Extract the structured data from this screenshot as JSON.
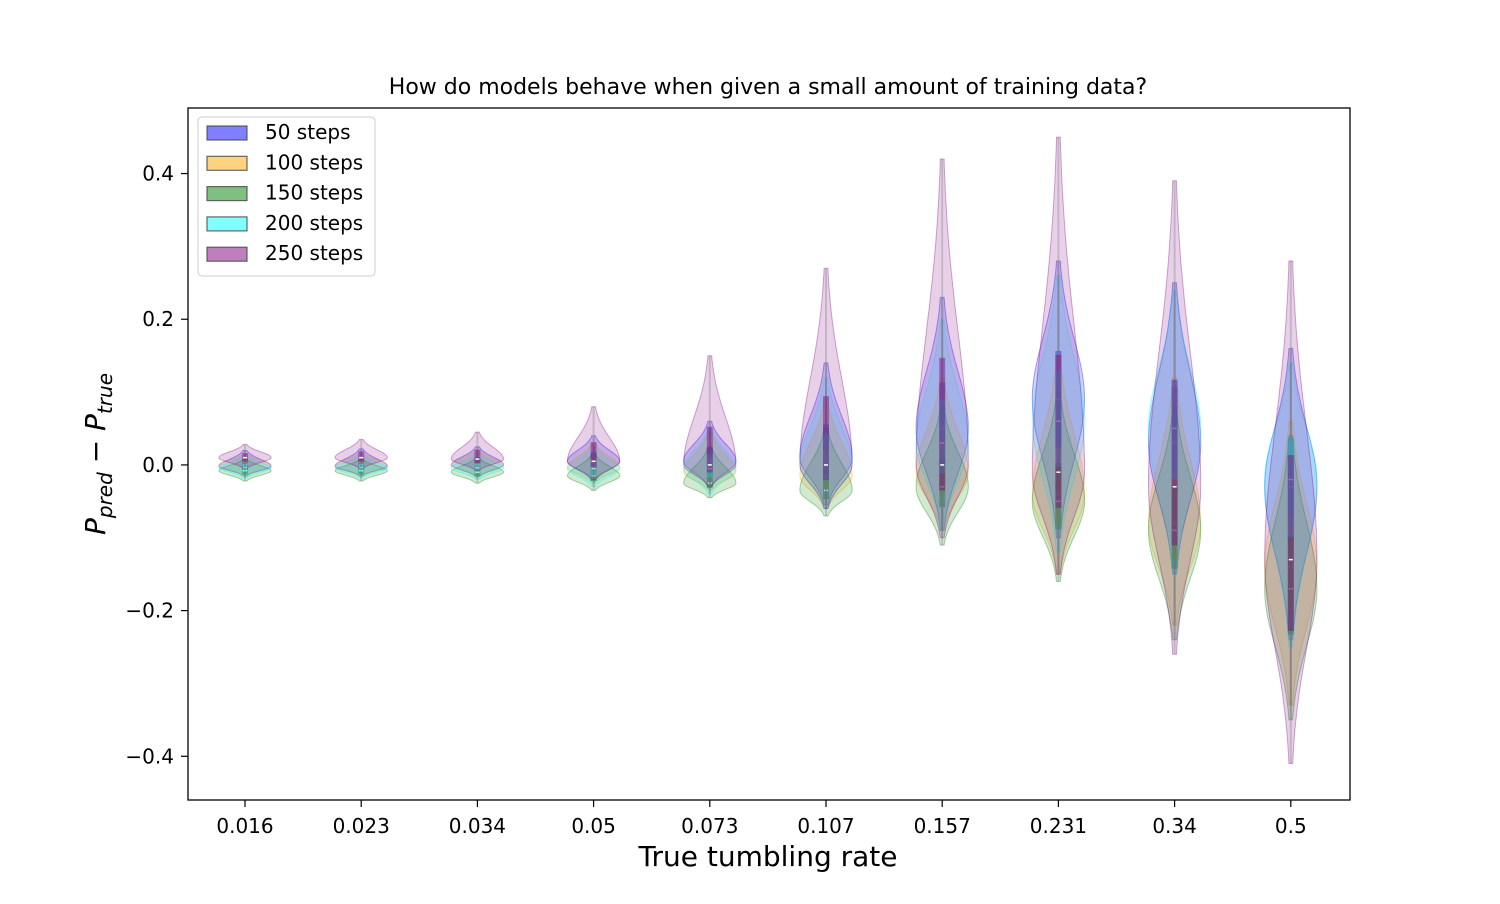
{
  "chart_data": {
    "type": "violin",
    "title": "How do models behave when given a small amount of training data?",
    "xlabel": "True tumbling rate",
    "ylabel_main": "P",
    "ylabel_sub1": "pred",
    "ylabel_minus": " − ",
    "ylabel_sub2": "true",
    "categories": [
      "0.016",
      "0.023",
      "0.034",
      "0.05",
      "0.073",
      "0.107",
      "0.157",
      "0.231",
      "0.34",
      "0.5"
    ],
    "ylim": [
      -0.46,
      0.49
    ],
    "yticks": [
      -0.4,
      -0.2,
      0.0,
      0.2,
      0.4
    ],
    "ytick_labels": [
      "−0.4",
      "−0.2",
      "0.0",
      "0.2",
      "0.4"
    ],
    "grid": false,
    "legend_position": "upper-left",
    "series": [
      {
        "name": "50 steps",
        "color": "#0000ff",
        "medians": [
          -0.002,
          -0.002,
          0.0,
          0.005,
          0.005,
          0.01,
          0.05,
          0.09,
          0.03,
          -0.03
        ],
        "mins": [
          -0.015,
          -0.015,
          -0.016,
          -0.022,
          -0.03,
          -0.055,
          -0.09,
          -0.1,
          -0.15,
          -0.24
        ],
        "maxs": [
          0.02,
          0.022,
          0.025,
          0.04,
          0.06,
          0.14,
          0.23,
          0.28,
          0.25,
          0.16
        ],
        "widths": [
          0.45,
          0.45,
          0.45,
          0.45,
          0.45,
          0.45,
          0.45,
          0.45,
          0.45,
          0.45
        ]
      },
      {
        "name": "100 steps",
        "color": "#ffa500",
        "medians": [
          0.0,
          0.0,
          0.0,
          -0.003,
          -0.01,
          -0.015,
          -0.01,
          -0.04,
          -0.08,
          -0.14
        ],
        "mins": [
          -0.015,
          -0.015,
          -0.017,
          -0.025,
          -0.035,
          -0.06,
          -0.09,
          -0.15,
          -0.22,
          -0.33
        ],
        "maxs": [
          0.015,
          0.016,
          0.02,
          0.03,
          0.045,
          0.09,
          0.12,
          0.15,
          0.12,
          0.06
        ],
        "widths": [
          0.45,
          0.45,
          0.45,
          0.45,
          0.45,
          0.45,
          0.45,
          0.45,
          0.45,
          0.45
        ]
      },
      {
        "name": "150 steps",
        "color": "#008000",
        "medians": [
          -0.008,
          -0.008,
          -0.01,
          -0.015,
          -0.025,
          -0.035,
          -0.03,
          -0.05,
          -0.09,
          -0.17
        ],
        "mins": [
          -0.022,
          -0.022,
          -0.025,
          -0.035,
          -0.045,
          -0.07,
          -0.11,
          -0.16,
          -0.24,
          -0.35
        ],
        "maxs": [
          0.008,
          0.008,
          0.01,
          0.015,
          0.025,
          0.05,
          0.08,
          0.1,
          0.08,
          0.04
        ],
        "widths": [
          0.45,
          0.45,
          0.45,
          0.45,
          0.45,
          0.45,
          0.45,
          0.45,
          0.45,
          0.45
        ]
      },
      {
        "name": "200 steps",
        "color": "#00ffff",
        "medians": [
          -0.004,
          -0.004,
          -0.004,
          -0.005,
          -0.005,
          0.0,
          0.03,
          0.06,
          0.05,
          -0.02
        ],
        "mins": [
          -0.018,
          -0.018,
          -0.02,
          -0.03,
          -0.04,
          -0.06,
          -0.09,
          -0.12,
          -0.15,
          -0.25
        ],
        "maxs": [
          0.012,
          0.013,
          0.016,
          0.025,
          0.05,
          0.12,
          0.2,
          0.26,
          0.24,
          0.14
        ],
        "widths": [
          0.45,
          0.45,
          0.45,
          0.45,
          0.45,
          0.45,
          0.45,
          0.45,
          0.45,
          0.45
        ]
      },
      {
        "name": "250 steps",
        "color": "#800080",
        "medians": [
          0.01,
          0.01,
          0.008,
          0.005,
          0.0,
          0.0,
          0.0,
          -0.01,
          -0.03,
          -0.13
        ],
        "mins": [
          -0.005,
          -0.005,
          -0.008,
          -0.02,
          -0.03,
          -0.06,
          -0.1,
          -0.15,
          -0.26,
          -0.41
        ],
        "maxs": [
          0.028,
          0.035,
          0.045,
          0.08,
          0.15,
          0.27,
          0.42,
          0.45,
          0.39,
          0.28
        ],
        "widths": [
          0.45,
          0.45,
          0.45,
          0.45,
          0.45,
          0.45,
          0.45,
          0.45,
          0.45,
          0.45
        ]
      }
    ]
  }
}
